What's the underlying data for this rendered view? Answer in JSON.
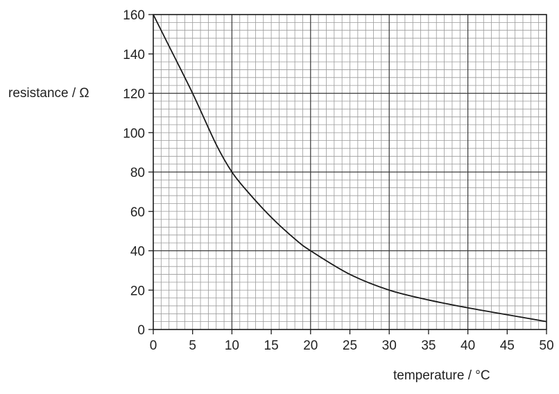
{
  "chart_data": {
    "type": "line",
    "title": "",
    "xlabel": "temperature / °C",
    "ylabel": "resistance / Ω",
    "xlim": [
      0,
      50
    ],
    "ylim": [
      0,
      160
    ],
    "x_ticks": [
      0,
      5,
      10,
      15,
      20,
      25,
      30,
      35,
      40,
      45,
      50
    ],
    "y_ticks": [
      0,
      20,
      40,
      60,
      80,
      100,
      120,
      140,
      160
    ],
    "grid": {
      "major_x": 10,
      "major_y": 40,
      "minor_x": 1,
      "minor_y": 4
    },
    "series": [
      {
        "x": [
          0,
          2,
          5,
          8,
          10,
          12,
          15,
          18,
          20,
          25,
          30,
          35,
          40,
          45,
          50
        ],
        "y": [
          160,
          144,
          120,
          94,
          80,
          70,
          57,
          46,
          40,
          28,
          20,
          15,
          11,
          7.5,
          4
        ]
      }
    ],
    "colors": {
      "line": "#1a1a1a",
      "minor_grid": "#9a9a9a",
      "major_grid": "#3a3a3a",
      "axis": "#1a1a1a"
    }
  }
}
